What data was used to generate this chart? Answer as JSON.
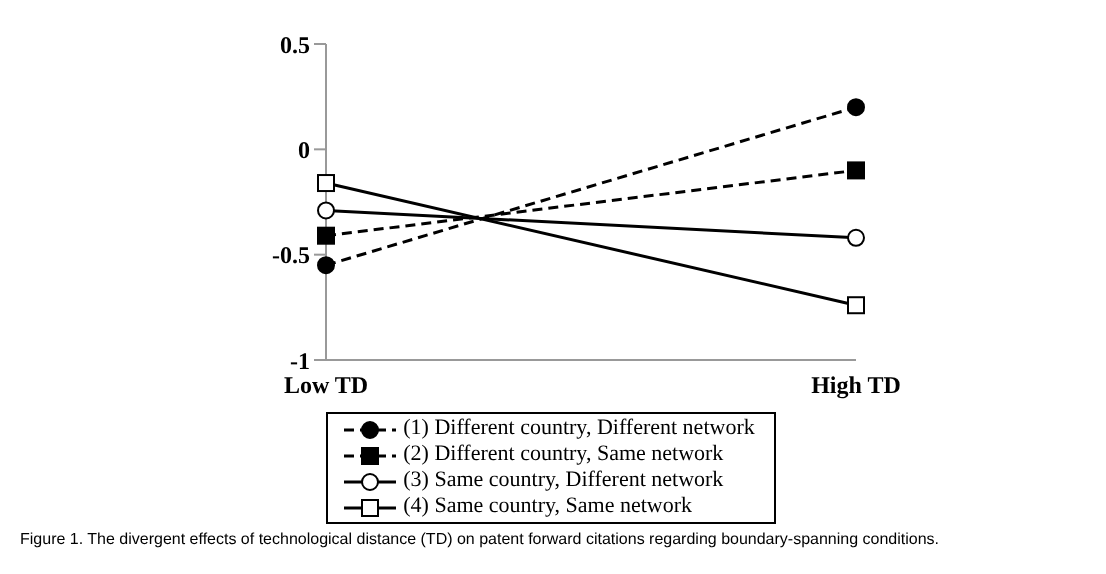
{
  "chart_data": {
    "type": "line",
    "categories": [
      "Low TD",
      "High TD"
    ],
    "series": [
      {
        "name": "(1) Different country, Different network",
        "color": "#000000",
        "values": [
          -0.55,
          0.2
        ],
        "marker": "circle",
        "line_style": "dashed"
      },
      {
        "name": "(2) Different country, Same network",
        "color": "#000000",
        "values": [
          -0.41,
          -0.1
        ],
        "marker": "square",
        "line_style": "dashed"
      },
      {
        "name": "(3) Same country, Different network",
        "color": "#000000",
        "values": [
          -0.29,
          -0.42
        ],
        "marker": "circle",
        "line_style": "solid"
      },
      {
        "name": "(4) Same country, Same network",
        "color": "#000000",
        "values": [
          -0.16,
          -0.74
        ],
        "marker": "square",
        "line_style": "solid"
      }
    ],
    "ylim": [
      -1,
      0.5
    ],
    "yticks": [
      -1,
      -0.5,
      0,
      0.5
    ],
    "grid": false,
    "legend": "bottom",
    "annotations": [
      "Figure 1. The divergent effects of technological distance (TD) on patent forward citations regarding boundary-spanning conditions."
    ]
  }
}
